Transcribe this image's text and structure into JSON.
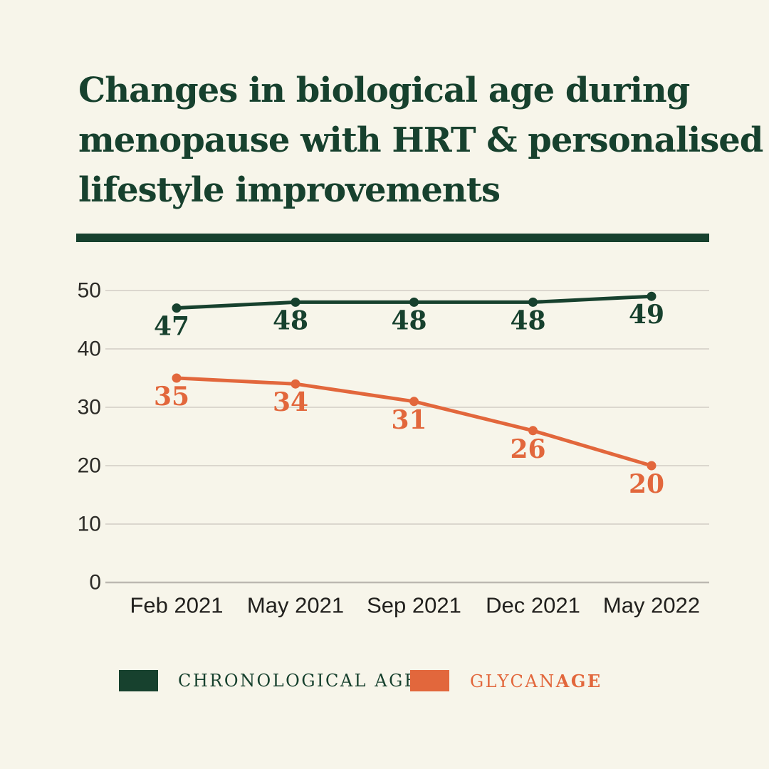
{
  "page": {
    "background": "#F7F5EA"
  },
  "header": {
    "title_lines": [
      "Changes in biological age during",
      "menopause with HRT & personalised",
      "lifestyle improvements"
    ],
    "title_color": "#17412E",
    "divider_color": "#17412E"
  },
  "chart_data": {
    "type": "line",
    "title": "Changes in biological age during menopause with HRT & personalised lifestyle improvements",
    "categories": [
      "Feb 2021",
      "May 2021",
      "Sep 2021",
      "Dec 2021",
      "May 2022"
    ],
    "series": [
      {
        "name": "CHRONOLOGICAL AGE",
        "color": "#17412E",
        "values": [
          47,
          48,
          48,
          48,
          49
        ]
      },
      {
        "name": "GLYCANAGE",
        "color": "#E2673C",
        "values": [
          35,
          34,
          31,
          26,
          20
        ]
      }
    ],
    "xlabel": "",
    "ylabel": "",
    "ylim": [
      0,
      50
    ],
    "yticks": [
      0,
      10,
      20,
      30,
      40,
      50
    ],
    "grid": true,
    "grid_color": "#DBD7CE",
    "zero_line_color": "#BCB9B1",
    "tick_color": "#2C2B27",
    "legend_position": "bottom",
    "point_labels_visible": true
  },
  "legend": {
    "items": [
      {
        "label": "CHRONOLOGICAL AGE",
        "color": "#17412E"
      },
      {
        "label_regular": "GLYCAN",
        "label_bold": "AGE",
        "color": "#E2673C"
      }
    ]
  }
}
